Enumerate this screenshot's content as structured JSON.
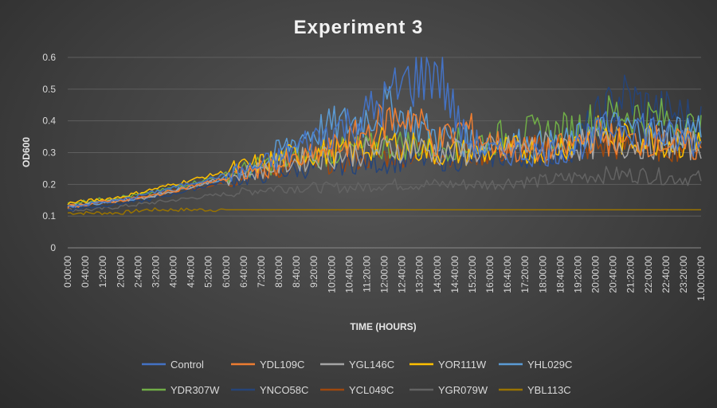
{
  "chart_data": {
    "type": "line",
    "title": "Experiment 3",
    "xlabel": "TIME (HOURS)",
    "ylabel": "OD600",
    "ylim": [
      0,
      0.6
    ],
    "yticks": [
      "0",
      "0.1",
      "0.2",
      "0.3",
      "0.4",
      "0.5",
      "0.6"
    ],
    "xticks": [
      "0:00:00",
      "0:40:00",
      "1:20:00",
      "2:00:00",
      "2:40:00",
      "3:20:00",
      "4:00:00",
      "4:40:00",
      "5:20:00",
      "6:00:00",
      "6:40:00",
      "7:20:00",
      "8:00:00",
      "8:40:00",
      "9:20:00",
      "10:00:00",
      "10:40:00",
      "11:20:00",
      "12:00:00",
      "12:40:00",
      "13:20:00",
      "14:00:00",
      "14:40:00",
      "15:20:00",
      "16:00:00",
      "16:40:00",
      "17:20:00",
      "18:00:00",
      "18:40:00",
      "19:20:00",
      "20:00:00",
      "20:40:00",
      "21:20:00",
      "22:00:00",
      "22:40:00",
      "23:20:00",
      "1.00:00:00"
    ],
    "x_hours": [
      0,
      1,
      2,
      3,
      4,
      5,
      6,
      7,
      8,
      9,
      10,
      11,
      12,
      13,
      14,
      15,
      16,
      17,
      18,
      19,
      20,
      21,
      22,
      23,
      24
    ],
    "grid": "horizontal",
    "legend_position": "bottom",
    "series": [
      {
        "name": "Control",
        "color": "#4472c4",
        "values": [
          0.13,
          0.14,
          0.15,
          0.17,
          0.19,
          0.21,
          0.23,
          0.25,
          0.28,
          0.33,
          0.37,
          0.4,
          0.46,
          0.53,
          0.57,
          0.35,
          0.3,
          0.3,
          0.3,
          0.31,
          0.35,
          0.4,
          0.38,
          0.34,
          0.33
        ]
      },
      {
        "name": "YDL109C",
        "color": "#ed7d31",
        "values": [
          0.13,
          0.14,
          0.15,
          0.16,
          0.18,
          0.2,
          0.22,
          0.24,
          0.26,
          0.28,
          0.31,
          0.35,
          0.4,
          0.42,
          0.33,
          0.38,
          0.33,
          0.31,
          0.3,
          0.32,
          0.36,
          0.33,
          0.34,
          0.33,
          0.31
        ]
      },
      {
        "name": "YGL146C",
        "color": "#a5a5a5",
        "values": [
          0.13,
          0.14,
          0.15,
          0.16,
          0.18,
          0.2,
          0.22,
          0.24,
          0.26,
          0.28,
          0.29,
          0.3,
          0.31,
          0.32,
          0.3,
          0.3,
          0.31,
          0.31,
          0.32,
          0.32,
          0.33,
          0.33,
          0.33,
          0.33,
          0.32
        ]
      },
      {
        "name": "YOR111W",
        "color": "#ffc000",
        "values": [
          0.14,
          0.15,
          0.16,
          0.18,
          0.2,
          0.22,
          0.24,
          0.26,
          0.28,
          0.3,
          0.3,
          0.31,
          0.33,
          0.32,
          0.3,
          0.3,
          0.3,
          0.31,
          0.31,
          0.33,
          0.36,
          0.34,
          0.35,
          0.33,
          0.33
        ]
      },
      {
        "name": "YHL029C",
        "color": "#5b9bd5",
        "values": [
          0.13,
          0.14,
          0.15,
          0.16,
          0.18,
          0.2,
          0.22,
          0.25,
          0.3,
          0.36,
          0.38,
          0.4,
          0.44,
          0.4,
          0.35,
          0.34,
          0.33,
          0.33,
          0.32,
          0.33,
          0.36,
          0.38,
          0.36,
          0.37,
          0.38
        ]
      },
      {
        "name": "YDR307W",
        "color": "#70ad47",
        "values": [
          0.14,
          0.15,
          0.16,
          0.17,
          0.19,
          0.21,
          0.23,
          0.25,
          0.27,
          0.29,
          0.3,
          0.31,
          0.32,
          0.33,
          0.32,
          0.33,
          0.34,
          0.36,
          0.36,
          0.37,
          0.4,
          0.43,
          0.41,
          0.4,
          0.36
        ]
      },
      {
        "name": "YNCO58C",
        "color": "#264478",
        "values": [
          0.12,
          0.13,
          0.14,
          0.15,
          0.17,
          0.19,
          0.21,
          0.22,
          0.24,
          0.25,
          0.26,
          0.27,
          0.27,
          0.28,
          0.28,
          0.28,
          0.29,
          0.29,
          0.3,
          0.31,
          0.4,
          0.48,
          0.44,
          0.42,
          0.4
        ]
      },
      {
        "name": "YCL049C",
        "color": "#9e480e",
        "values": [
          0.13,
          0.14,
          0.15,
          0.16,
          0.18,
          0.19,
          0.21,
          0.23,
          0.25,
          0.26,
          0.27,
          0.28,
          0.29,
          0.3,
          0.3,
          0.3,
          0.3,
          0.31,
          0.31,
          0.31,
          0.32,
          0.32,
          0.32,
          0.32,
          0.32
        ]
      },
      {
        "name": "YGR079W",
        "color": "#636363",
        "values": [
          0.12,
          0.12,
          0.13,
          0.14,
          0.15,
          0.16,
          0.17,
          0.18,
          0.19,
          0.19,
          0.19,
          0.19,
          0.2,
          0.2,
          0.2,
          0.2,
          0.2,
          0.21,
          0.21,
          0.22,
          0.23,
          0.23,
          0.23,
          0.22,
          0.22
        ]
      },
      {
        "name": "YBL113C",
        "color": "#997300",
        "values": [
          0.11,
          0.11,
          0.11,
          0.12,
          0.12,
          0.12,
          0.12,
          0.12,
          0.12,
          0.12,
          0.12,
          0.12,
          0.12,
          0.12,
          0.12,
          0.12,
          0.12,
          0.12,
          0.12,
          0.12,
          0.12,
          0.12,
          0.12,
          0.12,
          0.12
        ]
      }
    ]
  }
}
